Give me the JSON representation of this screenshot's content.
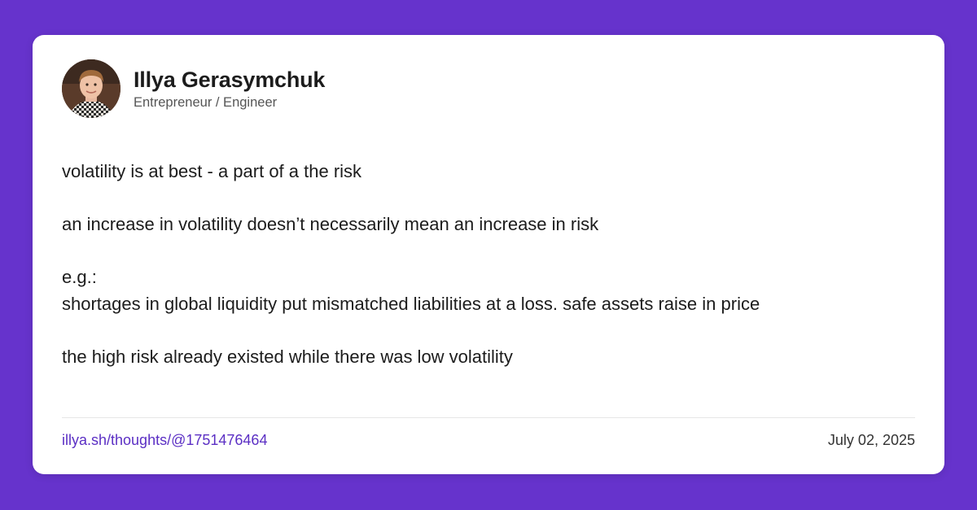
{
  "colors": {
    "background": "#6633cc",
    "card": "#ffffff",
    "link": "#5b2fc4",
    "text": "#1c1c1c"
  },
  "author": {
    "name": "Illya Gerasymchuk",
    "title": "Entrepreneur / Engineer",
    "avatar_icon": "avatar-photo"
  },
  "post": {
    "lines": [
      "volatility is at best - a part of a the risk",
      "an increase in volatility doesn’t necessarily mean an increase in risk",
      "e.g.:",
      "shortages in global liquidity put mismatched liabilities at a loss. safe assets raise in price",
      "the high risk already existed while there was low volatility"
    ]
  },
  "footer": {
    "link": "illya.sh/thoughts/@1751476464",
    "date": "July 02, 2025"
  }
}
